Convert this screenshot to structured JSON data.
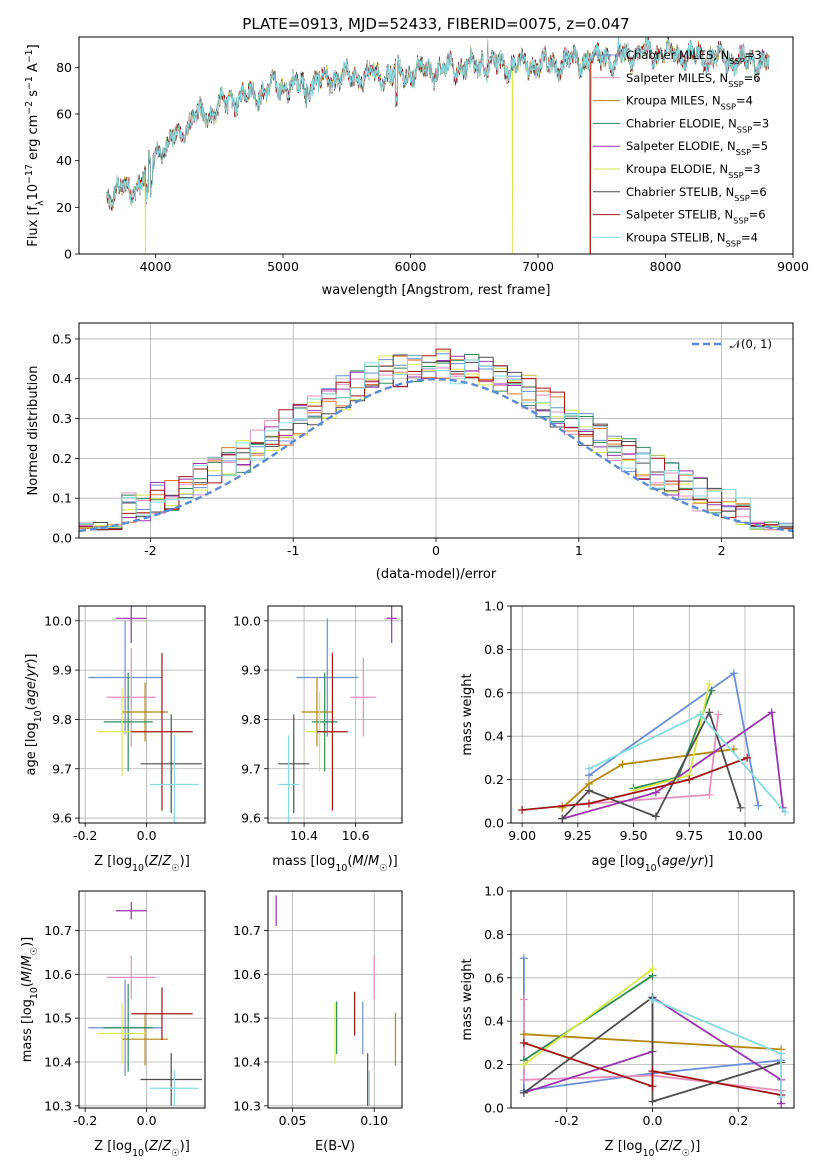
{
  "title": "PLATE=0913, MJD=52433, FIBERID=0075, z=0.047",
  "colors": {
    "Chabrier MILES": "#6b8fd6",
    "Salpeter MILES": "#e88fbf",
    "Kroupa MILES": "#b8860b",
    "Chabrier ELODIE": "#2e8b57",
    "Salpeter ELODIE": "#9b30b0",
    "Kroupa ELODIE": "#d7e84a",
    "Chabrier STELIB": "#4d4d4d",
    "Salpeter STELIB": "#a31515",
    "Kroupa STELIB": "#86dbe0",
    "normal": "#5b8bd6"
  },
  "chart_data": [
    {
      "id": "spectrum",
      "type": "line",
      "xlabel": "wavelength [Angstrom, rest frame]",
      "ylabel": "Flux [f_λ10⁻¹⁷ erg cm⁻² s⁻¹ A⁻¹]",
      "xlim": [
        3400,
        9000
      ],
      "ylim": [
        0,
        93
      ],
      "xticks": [
        4000,
        5000,
        6000,
        7000,
        8000,
        9000
      ],
      "yticks": [
        0,
        20,
        40,
        60,
        80
      ],
      "x_range_data": [
        3620,
        8810
      ],
      "continuum": {
        "x": [
          3620,
          3700,
          3800,
          3900,
          3950,
          4000,
          4100,
          4200,
          4300,
          4400,
          4500,
          4600,
          4700,
          4800,
          4900,
          5000,
          5200,
          5400,
          5600,
          5800,
          6000,
          6200,
          6400,
          6600,
          6800,
          7000,
          7200,
          7400,
          7600,
          7800,
          8000,
          8200,
          8400,
          8600,
          8810
        ],
        "y": [
          24,
          28,
          27,
          32,
          37,
          44,
          47,
          52,
          58,
          60,
          63,
          66,
          68,
          69,
          71,
          72,
          73,
          75,
          76,
          77,
          78,
          79,
          80,
          81,
          81,
          81,
          82,
          84,
          85,
          86,
          86,
          85,
          84,
          83,
          82
        ]
      },
      "series": [
        {
          "name": "Chabrier MILES",
          "label_suffix": "=3"
        },
        {
          "name": "Salpeter MILES",
          "label_suffix": "=6"
        },
        {
          "name": "Kroupa MILES",
          "label_suffix": "=4"
        },
        {
          "name": "Chabrier ELODIE",
          "label_suffix": "=3"
        },
        {
          "name": "Salpeter ELODIE",
          "label_suffix": "=5"
        },
        {
          "name": "Kroupa ELODIE",
          "label_suffix": "=3"
        },
        {
          "name": "Chabrier STELIB",
          "label_suffix": "=6"
        },
        {
          "name": "Salpeter STELIB",
          "label_suffix": "=6"
        },
        {
          "name": "Kroupa STELIB",
          "label_suffix": "=4"
        }
      ],
      "dropouts": [
        {
          "series": "Kroupa ELODIE",
          "x": 6800
        },
        {
          "series": "Kroupa MILES",
          "x": 7410
        },
        {
          "series": "Salpeter STELIB",
          "x": 7410
        },
        {
          "series": "Kroupa ELODIE",
          "x": 3920
        }
      ]
    },
    {
      "id": "residuals",
      "type": "histogram",
      "xlabel": "(data-model)/error",
      "ylabel": "Normed distribution",
      "xlim": [
        -2.5,
        2.5
      ],
      "ylim": [
        0,
        0.54
      ],
      "xticks": [
        -2,
        -1,
        0,
        1,
        2
      ],
      "yticks": [
        0.0,
        0.1,
        0.2,
        0.3,
        0.4,
        0.5
      ],
      "bin_width": 0.1,
      "legend": "$\\mathcal{N}(0,1)$",
      "legend_text": "𝒩(0, 1)"
    },
    {
      "id": "age_vs_Z",
      "type": "errorbar",
      "xlabel": "Z [log₁₀(Z/Z☉)]",
      "ylabel": "age  [log₁₀(age/yr)]",
      "xlim": [
        -0.22,
        0.19
      ],
      "ylim": [
        9.59,
        10.03
      ],
      "xticks": [
        -0.2,
        0.0
      ],
      "yticks": [
        9.6,
        9.7,
        9.8,
        9.9,
        10.0
      ],
      "points": [
        {
          "series": "Chabrier MILES",
          "x": -0.07,
          "xerr": 0.12,
          "y": 9.885,
          "yerr": 0.115
        },
        {
          "series": "Salpeter MILES",
          "x": -0.05,
          "xerr": 0.08,
          "y": 9.845,
          "yerr": 0.1
        },
        {
          "series": "Kroupa MILES",
          "x": -0.005,
          "xerr": 0.075,
          "y": 9.815,
          "yerr": 0.06
        },
        {
          "series": "Chabrier ELODIE",
          "x": -0.06,
          "xerr": 0.08,
          "y": 9.795,
          "yerr": 0.1
        },
        {
          "series": "Salpeter ELODIE",
          "x": -0.05,
          "xerr": 0.05,
          "y": 10.005,
          "yerr": 0.05
        },
        {
          "series": "Kroupa ELODIE",
          "x": -0.08,
          "xerr": 0.08,
          "y": 9.775,
          "yerr": 0.09
        },
        {
          "series": "Chabrier STELIB",
          "x": 0.08,
          "xerr": 0.1,
          "y": 9.71,
          "yerr": 0.1
        },
        {
          "series": "Salpeter STELIB",
          "x": 0.05,
          "xerr": 0.1,
          "y": 9.775,
          "yerr": 0.16
        },
        {
          "series": "Kroupa STELIB",
          "x": 0.09,
          "xerr": 0.08,
          "y": 9.668,
          "yerr": 0.1
        }
      ]
    },
    {
      "id": "age_vs_mass",
      "type": "errorbar",
      "xlabel": "mass [log₁₀(M/M☉)]",
      "ylabel": "",
      "xlim": [
        10.26,
        10.78
      ],
      "ylim": [
        9.59,
        10.03
      ],
      "xticks": [
        10.4,
        10.6
      ],
      "yticks": [
        9.6,
        9.7,
        9.8,
        9.9,
        10.0
      ],
      "points": [
        {
          "series": "Chabrier MILES",
          "x": 10.49,
          "xerr": 0.12,
          "y": 9.885,
          "yerr": 0.12
        },
        {
          "series": "Salpeter MILES",
          "x": 10.63,
          "xerr": 0.05,
          "y": 9.845,
          "yerr": 0.08
        },
        {
          "series": "Kroupa MILES",
          "x": 10.45,
          "xerr": 0.06,
          "y": 9.815,
          "yerr": 0.07
        },
        {
          "series": "Chabrier ELODIE",
          "x": 10.48,
          "xerr": 0.05,
          "y": 9.795,
          "yerr": 0.1
        },
        {
          "series": "Salpeter ELODIE",
          "x": 10.74,
          "xerr": 0.02,
          "y": 10.005,
          "yerr": 0.05
        },
        {
          "series": "Kroupa ELODIE",
          "x": 10.46,
          "xerr": 0.05,
          "y": 9.775,
          "yerr": 0.08
        },
        {
          "series": "Chabrier STELIB",
          "x": 10.36,
          "xerr": 0.06,
          "y": 9.71,
          "yerr": 0.1
        },
        {
          "series": "Salpeter STELIB",
          "x": 10.51,
          "xerr": 0.06,
          "y": 9.775,
          "yerr": 0.16
        },
        {
          "series": "Kroupa STELIB",
          "x": 10.34,
          "xerr": 0.04,
          "y": 9.668,
          "yerr": 0.1
        }
      ]
    },
    {
      "id": "weight_vs_age",
      "type": "line",
      "xlabel": "age  [log₁₀(age/yr)]",
      "ylabel": "mass weight",
      "xlim": [
        8.95,
        10.22
      ],
      "ylim": [
        0,
        1.0
      ],
      "xticks": [
        9.0,
        9.25,
        9.5,
        9.75,
        10.0
      ],
      "yticks": [
        0.0,
        0.2,
        0.4,
        0.6,
        0.8,
        1.0
      ],
      "series": [
        {
          "name": "Chabrier MILES",
          "x": [
            9.3,
            9.95,
            10.06
          ],
          "y": [
            0.22,
            0.69,
            0.08
          ]
        },
        {
          "name": "Salpeter MILES",
          "x": [
            9.18,
            9.84,
            9.88
          ],
          "y": [
            0.08,
            0.13,
            0.5
          ]
        },
        {
          "name": "Kroupa MILES",
          "x": [
            9.18,
            9.3,
            9.45,
            9.95
          ],
          "y": [
            0.07,
            0.18,
            0.27,
            0.34
          ]
        },
        {
          "name": "Chabrier ELODIE",
          "x": [
            9.5,
            9.7,
            9.85
          ],
          "y": [
            0.16,
            0.21,
            0.61
          ]
        },
        {
          "name": "Salpeter ELODIE",
          "x": [
            9.18,
            9.6,
            10.12,
            10.17
          ],
          "y": [
            0.02,
            0.14,
            0.51,
            0.07
          ]
        },
        {
          "name": "Kroupa ELODIE",
          "x": [
            9.5,
            9.75,
            9.84
          ],
          "y": [
            0.15,
            0.22,
            0.64
          ]
        },
        {
          "name": "Chabrier STELIB",
          "x": [
            9.18,
            9.3,
            9.6,
            9.84,
            9.98
          ],
          "y": [
            0.02,
            0.15,
            0.03,
            0.51,
            0.07
          ]
        },
        {
          "name": "Salpeter STELIB",
          "x": [
            9.0,
            9.3,
            9.75,
            10.01
          ],
          "y": [
            0.06,
            0.09,
            0.2,
            0.3
          ]
        },
        {
          "name": "Kroupa STELIB",
          "x": [
            9.3,
            9.8,
            10.18
          ],
          "y": [
            0.25,
            0.5,
            0.05
          ]
        }
      ]
    },
    {
      "id": "mass_vs_Z",
      "type": "errorbar",
      "xlabel": "Z [log₁₀(Z/Z☉)]",
      "ylabel": "mass [log₁₀(M/M☉)]",
      "xlim": [
        -0.22,
        0.19
      ],
      "ylim": [
        10.295,
        10.79
      ],
      "xticks": [
        -0.2,
        0.0
      ],
      "yticks": [
        10.3,
        10.4,
        10.5,
        10.6,
        10.7
      ],
      "points": [
        {
          "series": "Chabrier MILES",
          "x": -0.07,
          "xerr": 0.12,
          "y": 10.478,
          "yerr": 0.11
        },
        {
          "series": "Salpeter MILES",
          "x": -0.05,
          "xerr": 0.08,
          "y": 10.593,
          "yerr": 0.05
        },
        {
          "series": "Kroupa MILES",
          "x": -0.005,
          "xerr": 0.075,
          "y": 10.452,
          "yerr": 0.06
        },
        {
          "series": "Chabrier ELODIE",
          "x": -0.06,
          "xerr": 0.08,
          "y": 10.478,
          "yerr": 0.1
        },
        {
          "series": "Salpeter ELODIE",
          "x": -0.05,
          "xerr": 0.05,
          "y": 10.745,
          "yerr": 0.02
        },
        {
          "series": "Kroupa ELODIE",
          "x": -0.08,
          "xerr": 0.08,
          "y": 10.465,
          "yerr": 0.07
        },
        {
          "series": "Chabrier STELIB",
          "x": 0.08,
          "xerr": 0.1,
          "y": 10.36,
          "yerr": 0.06
        },
        {
          "series": "Salpeter STELIB",
          "x": 0.05,
          "xerr": 0.1,
          "y": 10.51,
          "yerr": 0.06
        },
        {
          "series": "Kroupa STELIB",
          "x": 0.09,
          "xerr": 0.08,
          "y": 10.34,
          "yerr": 0.04
        }
      ]
    },
    {
      "id": "mass_vs_ebv",
      "type": "errorbar",
      "xlabel": "E(B-V)",
      "ylabel": "",
      "xlim": [
        0.035,
        0.117
      ],
      "ylim": [
        10.295,
        10.79
      ],
      "xticks": [
        0.05,
        0.1
      ],
      "yticks": [
        10.3,
        10.4,
        10.5,
        10.6,
        10.7
      ],
      "points": [
        {
          "series": "Chabrier MILES",
          "x": 0.093,
          "y": 10.478,
          "yerr": 0.06
        },
        {
          "series": "Salpeter MILES",
          "x": 0.1,
          "y": 10.593,
          "yerr": 0.05
        },
        {
          "series": "Kroupa MILES",
          "x": 0.113,
          "y": 10.452,
          "yerr": 0.06
        },
        {
          "series": "Chabrier ELODIE",
          "x": 0.077,
          "y": 10.478,
          "yerr": 0.06
        },
        {
          "series": "Salpeter ELODIE",
          "x": 0.04,
          "y": 10.745,
          "yerr": 0.035
        },
        {
          "series": "Kroupa ELODIE",
          "x": 0.076,
          "y": 10.465,
          "yerr": 0.07
        },
        {
          "series": "Chabrier STELIB",
          "x": 0.096,
          "y": 10.36,
          "yerr": 0.06
        },
        {
          "series": "Salpeter STELIB",
          "x": 0.088,
          "y": 10.51,
          "yerr": 0.05
        },
        {
          "series": "Kroupa STELIB",
          "x": 0.097,
          "y": 10.34,
          "yerr": 0.04
        }
      ]
    },
    {
      "id": "weight_vs_Z",
      "type": "line",
      "xlabel": "Z [log₁₀(Z/Z☉)]",
      "ylabel": "mass weight",
      "xlim": [
        -0.33,
        0.33
      ],
      "ylim": [
        0,
        1.0
      ],
      "xticks": [
        -0.2,
        0.0,
        0.2
      ],
      "yticks": [
        0.0,
        0.2,
        0.4,
        0.6,
        0.8,
        1.0
      ],
      "series": [
        {
          "name": "Chabrier MILES",
          "x": [
            -0.3,
            -0.3,
            0.0,
            0.3
          ],
          "y": [
            0.69,
            0.08,
            0.16,
            0.22
          ]
        },
        {
          "name": "Salpeter MILES",
          "x": [
            -0.3,
            -0.3,
            0.0,
            0.3
          ],
          "y": [
            0.5,
            0.13,
            0.15,
            0.08
          ]
        },
        {
          "name": "Kroupa MILES",
          "x": [
            -0.3,
            0.3
          ],
          "y": [
            0.34,
            0.27
          ]
        },
        {
          "name": "Chabrier ELODIE",
          "x": [
            -0.3,
            0.0
          ],
          "y": [
            0.22,
            0.61
          ]
        },
        {
          "name": "Salpeter ELODIE",
          "x": [
            -0.3,
            0.0,
            0.0,
            0.3,
            0.3
          ],
          "y": [
            0.07,
            0.26,
            0.51,
            0.13,
            0.02
          ]
        },
        {
          "name": "Kroupa ELODIE",
          "x": [
            -0.3,
            0.0
          ],
          "y": [
            0.2,
            0.64
          ]
        },
        {
          "name": "Chabrier STELIB",
          "x": [
            -0.3,
            0.0,
            0.0,
            0.3
          ],
          "y": [
            0.07,
            0.51,
            0.03,
            0.21
          ]
        },
        {
          "name": "Salpeter STELIB",
          "x": [
            -0.3,
            0.0,
            0.0,
            0.3
          ],
          "y": [
            0.3,
            0.1,
            0.17,
            0.06
          ]
        },
        {
          "name": "Kroupa STELIB",
          "x": [
            0.0,
            0.3,
            0.3
          ],
          "y": [
            0.5,
            0.25,
            0.05
          ]
        }
      ]
    }
  ]
}
